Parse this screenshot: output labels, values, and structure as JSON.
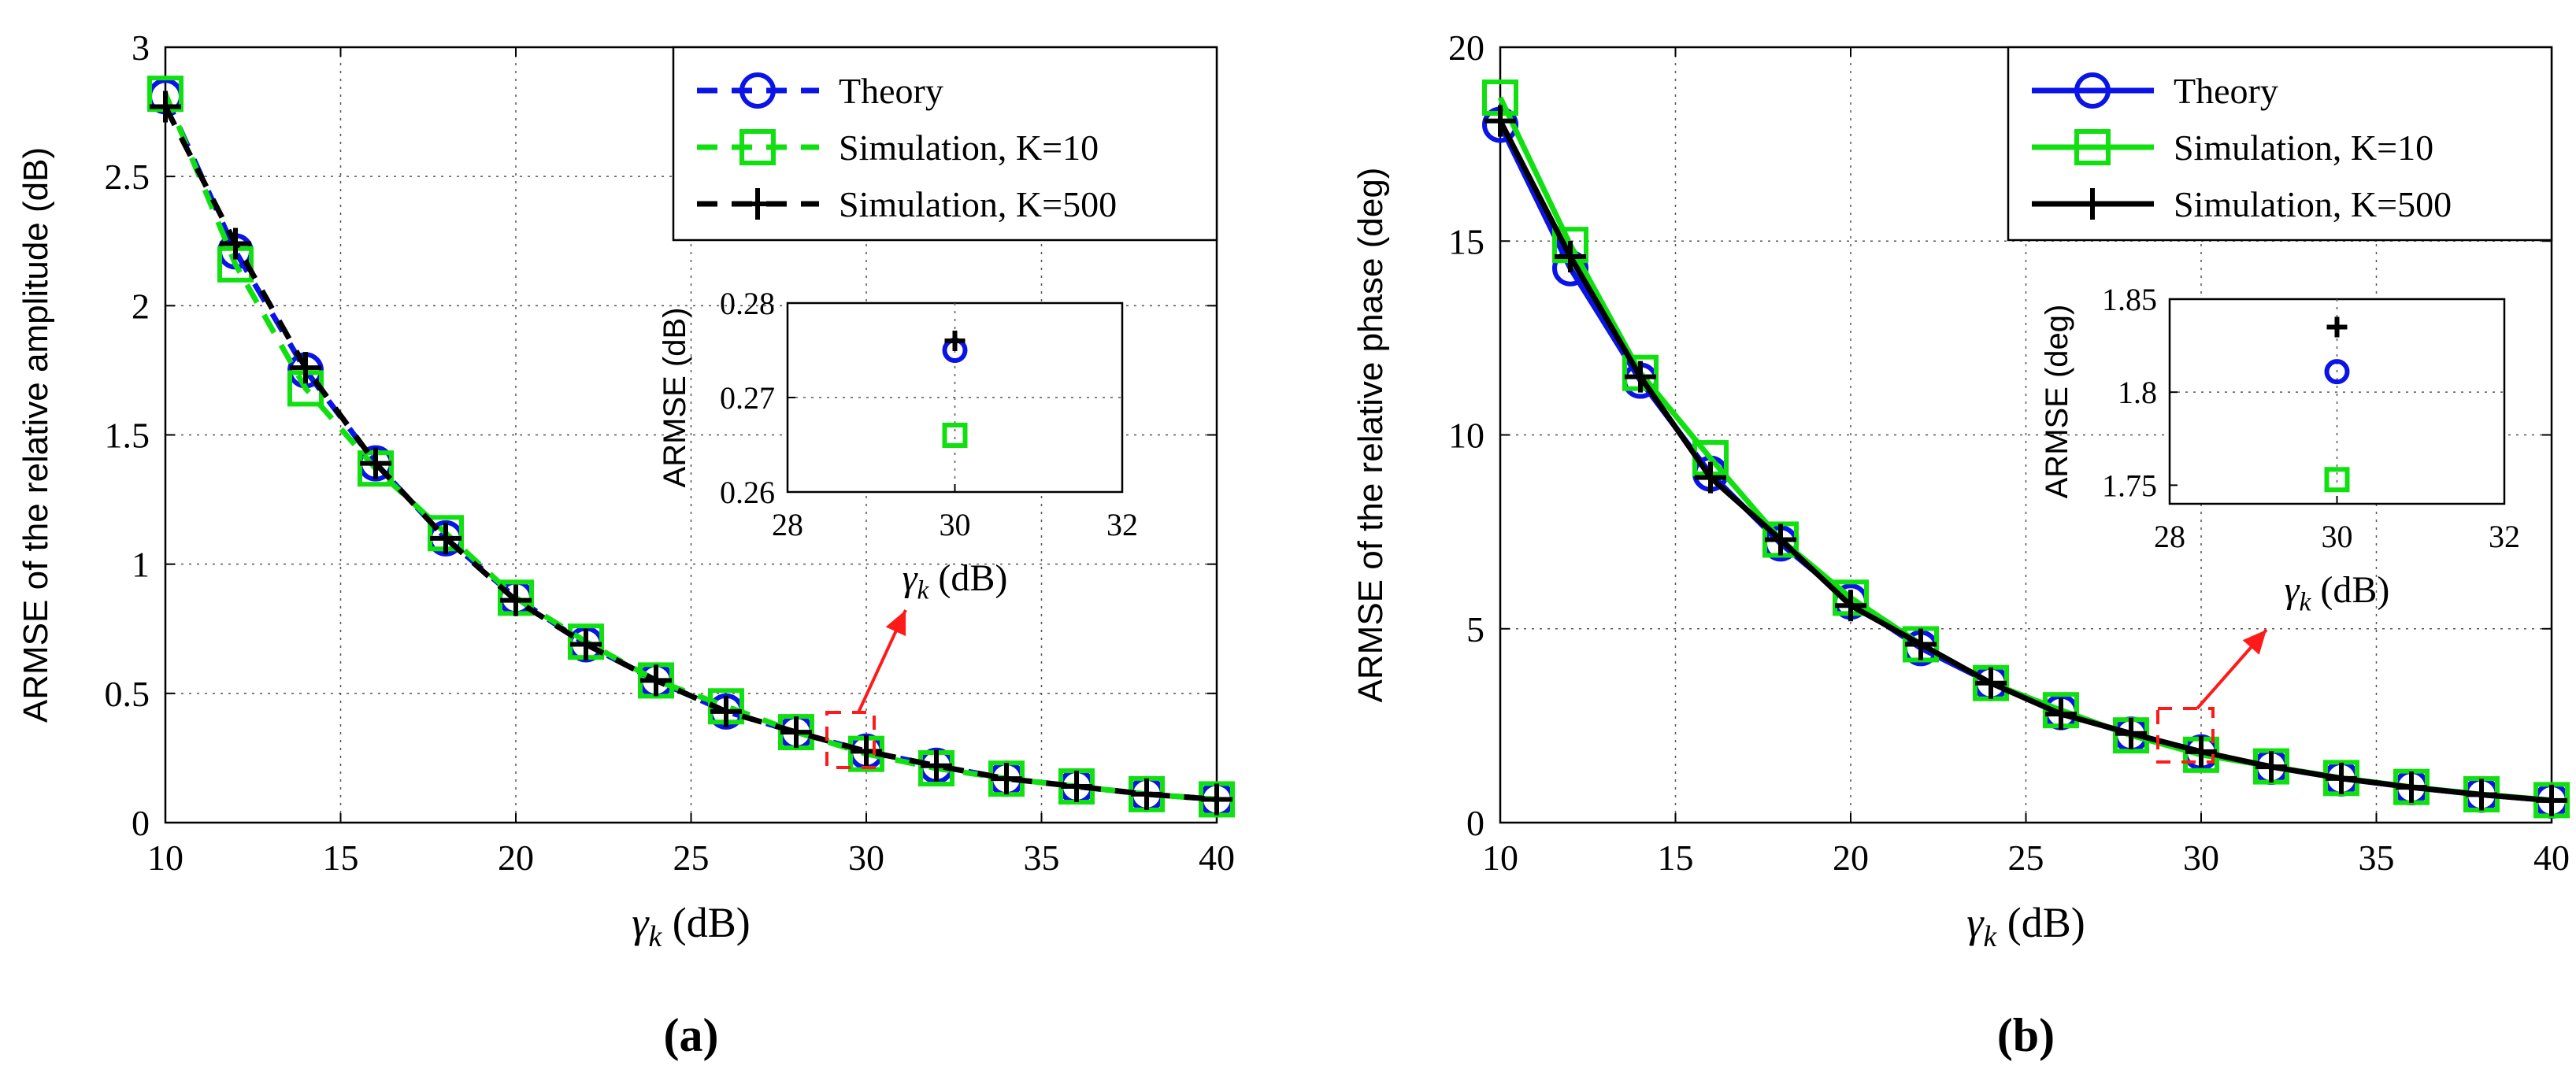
{
  "colors": {
    "theory": "#0a14e6",
    "sim10": "#10e010",
    "sim500": "#000000",
    "callout": "#ff1a1a",
    "grid": "#555555"
  },
  "chart_data": [
    {
      "id": "a",
      "type": "line",
      "panel_label": "(a)",
      "line_style": "dashed",
      "xlabel": "γk (dB)",
      "ylabel": "ARMSE of the relative amplitude (dB)",
      "xlim": [
        10,
        40
      ],
      "ylim": [
        0,
        3
      ],
      "xticks": [
        10,
        15,
        20,
        25,
        30,
        35,
        40
      ],
      "yticks": [
        0,
        0.5,
        1,
        1.5,
        2,
        2.5,
        3
      ],
      "ytick_labels": [
        "0",
        "0.5",
        "1",
        "1.5",
        "2",
        "2.5",
        "3"
      ],
      "grid": true,
      "legend_position": "top-right",
      "x": [
        10,
        12,
        14,
        16,
        18,
        20,
        22,
        24,
        26,
        28,
        30,
        32,
        34,
        36,
        38,
        40
      ],
      "series": [
        {
          "name": "Theory",
          "key": "theory",
          "marker": "circle",
          "values": [
            2.81,
            2.21,
            1.75,
            1.39,
            1.1,
            0.87,
            0.69,
            0.55,
            0.43,
            0.35,
            0.275,
            0.22,
            0.17,
            0.14,
            0.11,
            0.09
          ]
        },
        {
          "name": "Simulation, K=10",
          "key": "sim10",
          "marker": "square",
          "values": [
            2.82,
            2.16,
            1.68,
            1.37,
            1.12,
            0.87,
            0.7,
            0.55,
            0.45,
            0.35,
            0.266,
            0.21,
            0.17,
            0.14,
            0.11,
            0.09
          ]
        },
        {
          "name": "Simulation, K=500",
          "key": "sim500",
          "marker": "plus",
          "values": [
            2.77,
            2.24,
            1.76,
            1.39,
            1.1,
            0.86,
            0.69,
            0.55,
            0.43,
            0.35,
            0.276,
            0.22,
            0.17,
            0.14,
            0.11,
            0.09
          ]
        }
      ],
      "inset": {
        "xlabel": "γk (dB)",
        "ylabel": "ARMSE (dB)",
        "xlim": [
          28,
          32
        ],
        "ylim": [
          0.26,
          0.28
        ],
        "xticks": [
          28,
          30,
          32
        ],
        "yticks": [
          0.26,
          0.27,
          0.28
        ],
        "ytick_labels": [
          "0.26",
          "0.27",
          "0.28"
        ],
        "points": [
          {
            "key": "theory",
            "marker": "circle",
            "x": 30,
            "y": 0.275
          },
          {
            "key": "sim10",
            "marker": "square",
            "x": 30,
            "y": 0.266
          },
          {
            "key": "sim500",
            "marker": "plus",
            "x": 30,
            "y": 0.276
          }
        ]
      }
    },
    {
      "id": "b",
      "type": "line",
      "panel_label": "(b)",
      "line_style": "solid",
      "xlabel": "γk (dB)",
      "ylabel": "ARMSE of the relative phase (deg)",
      "xlim": [
        10,
        40
      ],
      "ylim": [
        0,
        20
      ],
      "xticks": [
        10,
        15,
        20,
        25,
        30,
        35,
        40
      ],
      "yticks": [
        0,
        5,
        10,
        15,
        20
      ],
      "ytick_labels": [
        "0",
        "5",
        "10",
        "15",
        "20"
      ],
      "grid": true,
      "legend_position": "top-right",
      "x": [
        10,
        12,
        14,
        16,
        18,
        20,
        22,
        24,
        26,
        28,
        30,
        32,
        34,
        36,
        38,
        40
      ],
      "series": [
        {
          "name": "Theory",
          "key": "theory",
          "marker": "circle",
          "values": [
            18.0,
            14.3,
            11.4,
            9.0,
            7.2,
            5.7,
            4.5,
            3.6,
            2.85,
            2.27,
            1.81,
            1.44,
            1.14,
            0.91,
            0.72,
            0.57
          ]
        },
        {
          "name": "Simulation, K=10",
          "key": "sim10",
          "marker": "square",
          "values": [
            18.7,
            14.9,
            11.6,
            9.4,
            7.3,
            5.8,
            4.6,
            3.6,
            2.9,
            2.25,
            1.75,
            1.45,
            1.15,
            0.92,
            0.73,
            0.58
          ]
        },
        {
          "name": "Simulation, K=500",
          "key": "sim500",
          "marker": "plus",
          "values": [
            18.1,
            14.6,
            11.5,
            8.9,
            7.3,
            5.6,
            4.6,
            3.6,
            2.8,
            2.3,
            1.83,
            1.44,
            1.14,
            0.91,
            0.72,
            0.57
          ]
        }
      ],
      "inset": {
        "xlabel": "γk (dB)",
        "ylabel": "ARMSE (deg)",
        "xlim": [
          28,
          32
        ],
        "ylim": [
          1.74,
          1.85
        ],
        "xticks": [
          28,
          30,
          32
        ],
        "yticks": [
          1.75,
          1.8,
          1.85
        ],
        "ytick_labels": [
          "1.75",
          "1.8",
          "1.85"
        ],
        "points": [
          {
            "key": "theory",
            "marker": "circle",
            "x": 30,
            "y": 1.811
          },
          {
            "key": "sim10",
            "marker": "square",
            "x": 30,
            "y": 1.753
          },
          {
            "key": "sim500",
            "marker": "plus",
            "x": 30,
            "y": 1.835
          }
        ]
      }
    }
  ]
}
